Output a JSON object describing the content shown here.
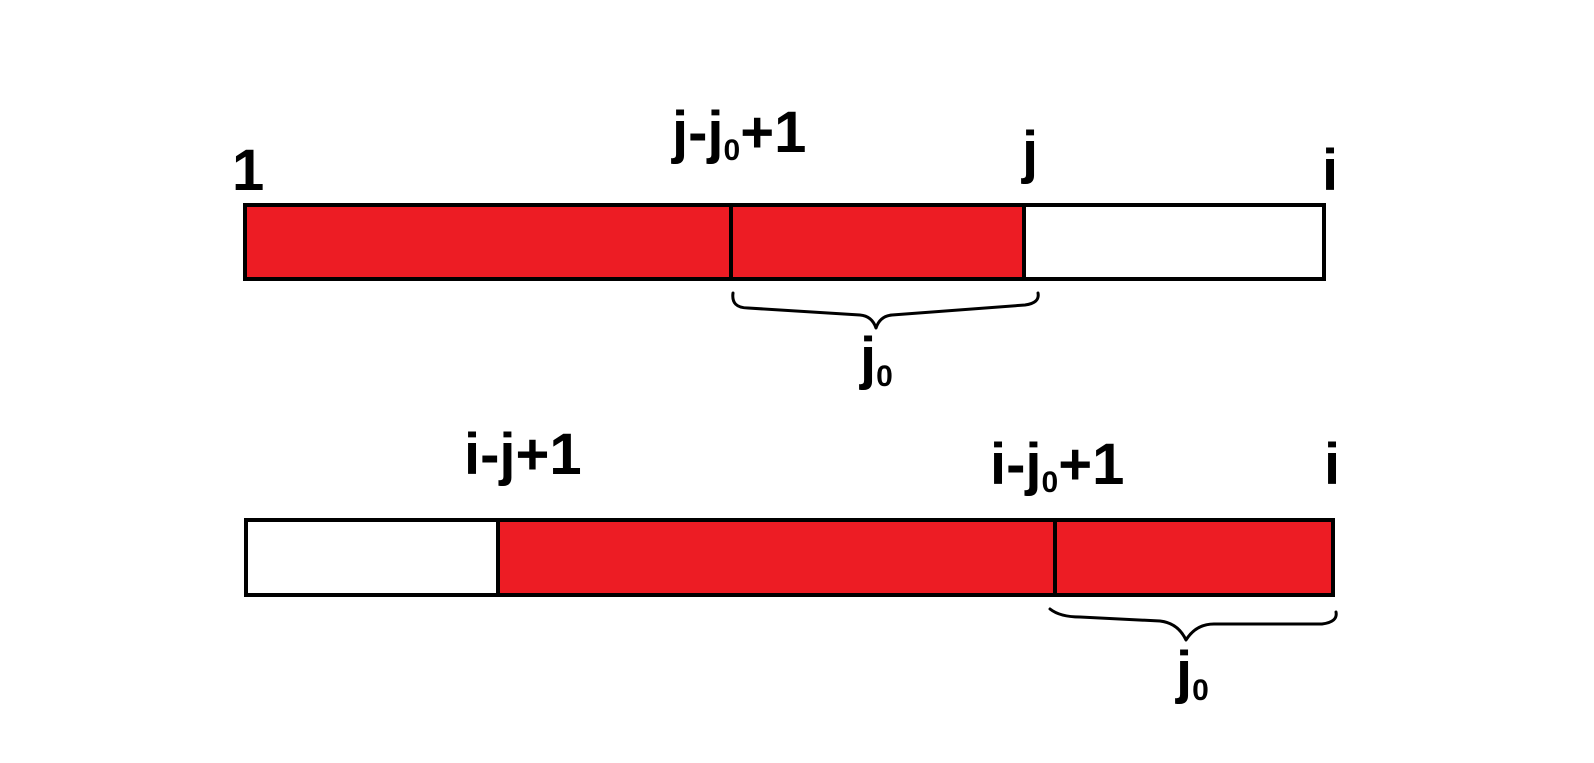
{
  "colors": {
    "filled": "#ed1c24",
    "empty": "#ffffff",
    "stroke": "#000000"
  },
  "top_bar": {
    "label_start": "1",
    "label_mid": {
      "base": "j-j",
      "sub": "0",
      "tail": "+1"
    },
    "label_j": "j",
    "label_end": "i",
    "brace_label": {
      "base": "j",
      "sub": "0"
    }
  },
  "bottom_bar": {
    "label_start": {
      "text": "i-j+1"
    },
    "label_mid": {
      "base": "i-j",
      "sub": "0",
      "tail": "+1"
    },
    "label_end": "i",
    "brace_label": {
      "base": "j",
      "sub": "0"
    }
  }
}
